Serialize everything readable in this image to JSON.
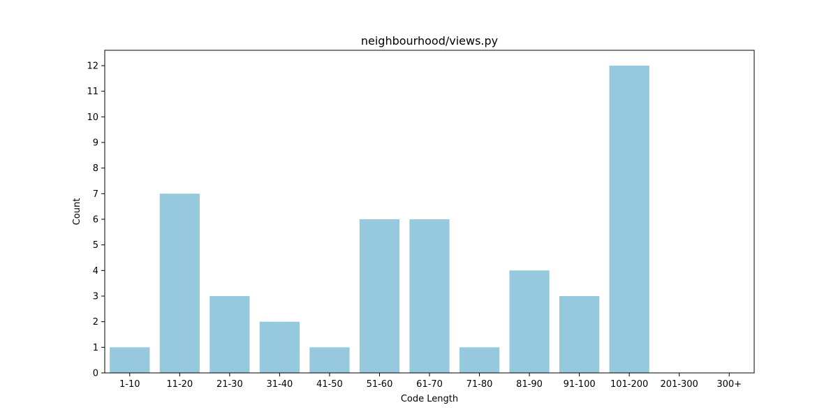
{
  "chart_data": {
    "type": "bar",
    "title": "neighbourhood/views.py",
    "xlabel": "Code Length",
    "ylabel": "Count",
    "categories": [
      "1-10",
      "11-20",
      "21-30",
      "31-40",
      "41-50",
      "51-60",
      "61-70",
      "71-80",
      "81-90",
      "91-100",
      "101-200",
      "201-300",
      "300+"
    ],
    "values": [
      1,
      7,
      3,
      2,
      1,
      6,
      6,
      1,
      4,
      3,
      12,
      0,
      0
    ],
    "ylim": [
      0,
      12.6
    ],
    "yticks": [
      0,
      1,
      2,
      3,
      4,
      5,
      6,
      7,
      8,
      9,
      10,
      11,
      12
    ],
    "grid": false,
    "bar_color": "#96c9de"
  }
}
